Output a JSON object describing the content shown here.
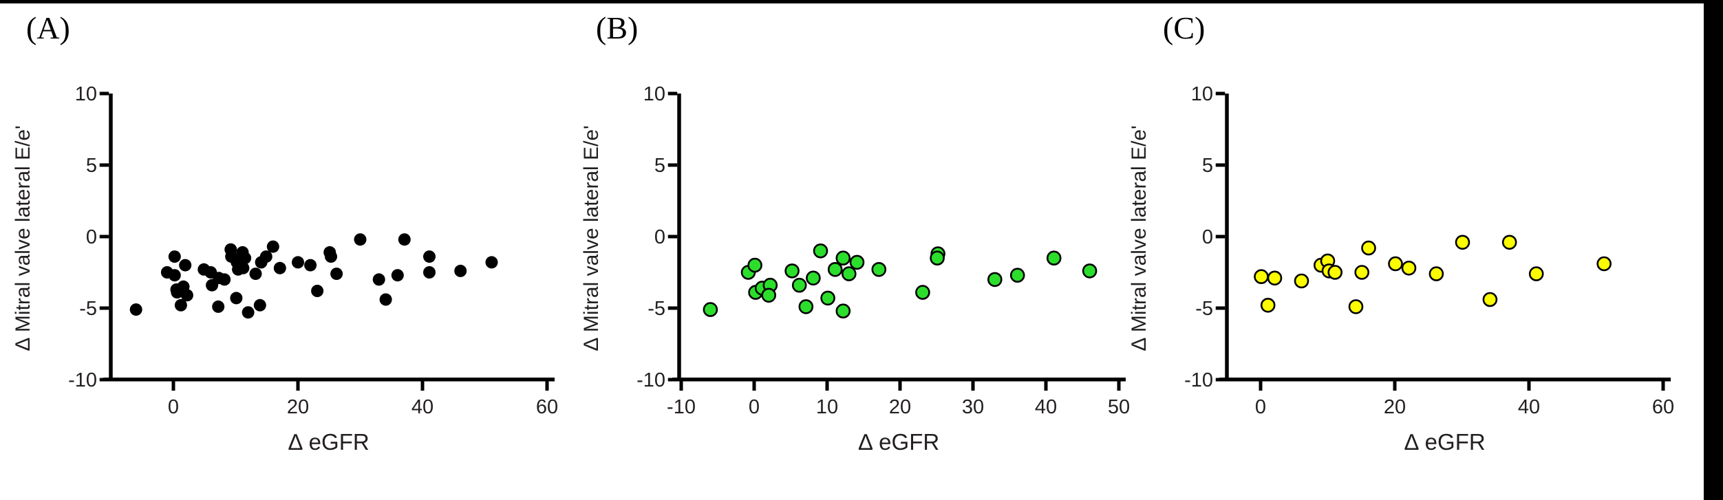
{
  "figure": {
    "background": "#ffffff",
    "top_bar_color": "#000000",
    "right_bar_color": "#000000",
    "axis_color": "#000000",
    "text_color": "#231f20"
  },
  "chart_data": [
    {
      "type": "scatter",
      "panel_label": "(A)",
      "xlabel": "∆ eGFR",
      "ylabel": "∆ Mitral valve lateral E/e'",
      "marker": {
        "fill": "#000000",
        "stroke": "#000000",
        "shape": "circle"
      },
      "x_ticks": [
        0,
        20,
        40,
        60
      ],
      "y_ticks": [
        10,
        5,
        0,
        -5,
        -10
      ],
      "xlim": [
        -11.3,
        61.2
      ],
      "ylim": [
        -10,
        10
      ],
      "grid": false,
      "legend": "none",
      "points": [
        [
          -6,
          -5.1
        ],
        [
          0.2,
          -1.4
        ],
        [
          -1,
          -2.5
        ],
        [
          0.2,
          -2.7
        ],
        [
          1.9,
          -2
        ],
        [
          0.5,
          -3.7
        ],
        [
          1.6,
          -3.5
        ],
        [
          2.2,
          -4.1
        ],
        [
          0.6,
          -3.9
        ],
        [
          1.2,
          -4.8
        ],
        [
          4.9,
          -2.3
        ],
        [
          6,
          -2.5
        ],
        [
          6.2,
          -3.4
        ],
        [
          7.3,
          -2.9
        ],
        [
          7.2,
          -4.9
        ],
        [
          8.2,
          -3
        ],
        [
          9.2,
          -0.9
        ],
        [
          9.3,
          -1.4
        ],
        [
          10.2,
          -1.8
        ],
        [
          10.7,
          -1.5
        ],
        [
          11.1,
          -1.1
        ],
        [
          11.5,
          -1.5
        ],
        [
          10.4,
          -2.3
        ],
        [
          11.2,
          -2.2
        ],
        [
          10.1,
          -4.3
        ],
        [
          12,
          -5.3
        ],
        [
          13.2,
          -2.6
        ],
        [
          13.9,
          -4.8
        ],
        [
          14.1,
          -1.8
        ],
        [
          14.9,
          -1.4
        ],
        [
          16,
          -0.7
        ],
        [
          17.1,
          -2.2
        ],
        [
          20,
          -1.8
        ],
        [
          22,
          -2
        ],
        [
          23.1,
          -3.8
        ],
        [
          25.1,
          -1.1
        ],
        [
          25.3,
          -1.4
        ],
        [
          26.2,
          -2.6
        ],
        [
          30,
          -0.2
        ],
        [
          33,
          -3
        ],
        [
          34.1,
          -4.4
        ],
        [
          36,
          -2.7
        ],
        [
          37.1,
          -0.2
        ],
        [
          41.1,
          -1.4
        ],
        [
          41.1,
          -2.5
        ],
        [
          46.1,
          -2.4
        ],
        [
          51.1,
          -1.8
        ]
      ]
    },
    {
      "type": "scatter",
      "panel_label": "(B)",
      "xlabel": "∆ eGFR",
      "ylabel": "∆ Mitral valve lateral E/e'",
      "marker": {
        "fill": "#2cde2c",
        "stroke": "#000000",
        "shape": "circle"
      },
      "x_ticks": [
        -10,
        0,
        10,
        20,
        30,
        40,
        50
      ],
      "y_ticks": [
        10,
        5,
        0,
        -5,
        -10
      ],
      "xlim": [
        -11.2,
        50.9
      ],
      "ylim": [
        -10,
        10
      ],
      "grid": false,
      "legend": "none",
      "points": [
        [
          -6,
          -5.1
        ],
        [
          -0.8,
          -2.5
        ],
        [
          0.1,
          -2
        ],
        [
          0.2,
          -3.9
        ],
        [
          1.1,
          -3.6
        ],
        [
          2.2,
          -3.4
        ],
        [
          2,
          -4.1
        ],
        [
          5.2,
          -2.4
        ],
        [
          6.2,
          -3.4
        ],
        [
          7.1,
          -4.9
        ],
        [
          8.1,
          -2.9
        ],
        [
          9.1,
          -1
        ],
        [
          10.1,
          -4.3
        ],
        [
          11.1,
          -2.3
        ],
        [
          12.2,
          -1.5
        ],
        [
          12.2,
          -5.2
        ],
        [
          13,
          -2.6
        ],
        [
          14.1,
          -1.8
        ],
        [
          17.1,
          -2.3
        ],
        [
          23.1,
          -3.9
        ],
        [
          25.2,
          -1.2
        ],
        [
          25.1,
          -1.5
        ],
        [
          33,
          -3
        ],
        [
          36.1,
          -2.7
        ],
        [
          41.1,
          -1.5
        ],
        [
          46,
          -2.4
        ]
      ]
    },
    {
      "type": "scatter",
      "panel_label": "(C)",
      "xlabel": "∆ eGFR",
      "ylabel": "∆ Mitral valve lateral E/e'",
      "marker": {
        "fill": "#fcfc00",
        "stroke": "#000000",
        "shape": "circle"
      },
      "x_ticks": [
        0,
        20,
        40,
        60
      ],
      "y_ticks": [
        10,
        5,
        0,
        -5,
        -10
      ],
      "xlim": [
        -6.2,
        61.1
      ],
      "ylim": [
        -10,
        10
      ],
      "grid": false,
      "legend": "none",
      "points": [
        [
          0.1,
          -2.8
        ],
        [
          1.1,
          -4.8
        ],
        [
          2.1,
          -2.9
        ],
        [
          6.1,
          -3.1
        ],
        [
          9,
          -2
        ],
        [
          10,
          -1.7
        ],
        [
          10.2,
          -2.4
        ],
        [
          11.1,
          -2.5
        ],
        [
          14.2,
          -4.9
        ],
        [
          15.1,
          -2.5
        ],
        [
          16.1,
          -0.8
        ],
        [
          20.1,
          -1.9
        ],
        [
          22.1,
          -2.2
        ],
        [
          26.2,
          -2.6
        ],
        [
          30.1,
          -0.4
        ],
        [
          34.2,
          -4.4
        ],
        [
          37.1,
          -0.4
        ],
        [
          41.1,
          -2.6
        ],
        [
          51.2,
          -1.9
        ]
      ]
    }
  ]
}
